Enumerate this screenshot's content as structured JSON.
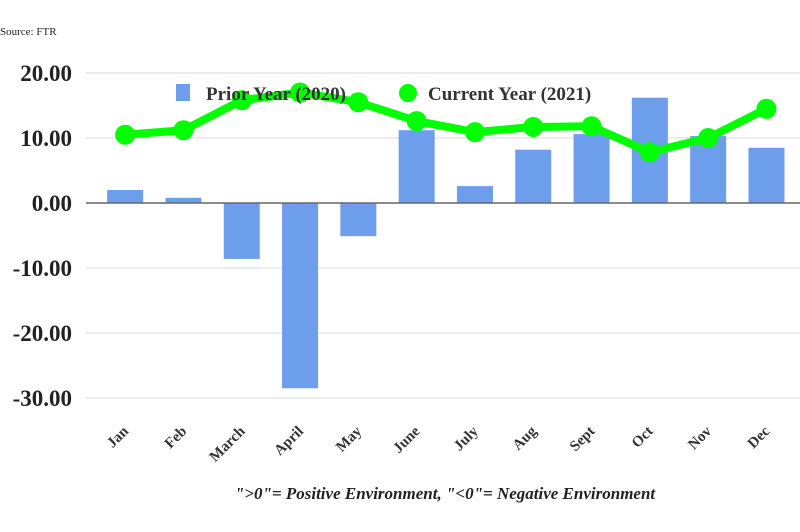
{
  "source": "Source: FTR",
  "footnote": "\">0\"= Positive Environment, \"<0\"= Negative Environment",
  "colors": {
    "prior": "#6d9eeb",
    "current": "#00ff00",
    "grid": "#d9d9d9",
    "axis": "#666666"
  },
  "chart_data": {
    "type": "bar+line",
    "categories": [
      "Jan",
      "Feb",
      "March",
      "April",
      "May",
      "June",
      "July",
      "Aug",
      "Sept",
      "Oct",
      "Nov",
      "Dec"
    ],
    "series": [
      {
        "name": "Prior Year (2020)",
        "type": "bar",
        "values": [
          2.0,
          0.8,
          -8.6,
          -28.5,
          -5.1,
          11.2,
          2.6,
          8.2,
          10.6,
          16.2,
          10.3,
          8.5
        ]
      },
      {
        "name": "Current Year (2021)",
        "type": "line",
        "values": [
          10.5,
          11.2,
          15.8,
          17.0,
          15.5,
          12.6,
          10.9,
          11.7,
          11.8,
          7.8,
          10.0,
          14.5
        ]
      }
    ],
    "yticks": [
      "20.00",
      "10.00",
      "0.00",
      "-10.00",
      "-20.00",
      "-30.00"
    ],
    "ytick_values": [
      20,
      10,
      0,
      -10,
      -20,
      -30
    ],
    "ylim": [
      -30,
      20
    ],
    "legend": "top-center",
    "grid": true
  }
}
